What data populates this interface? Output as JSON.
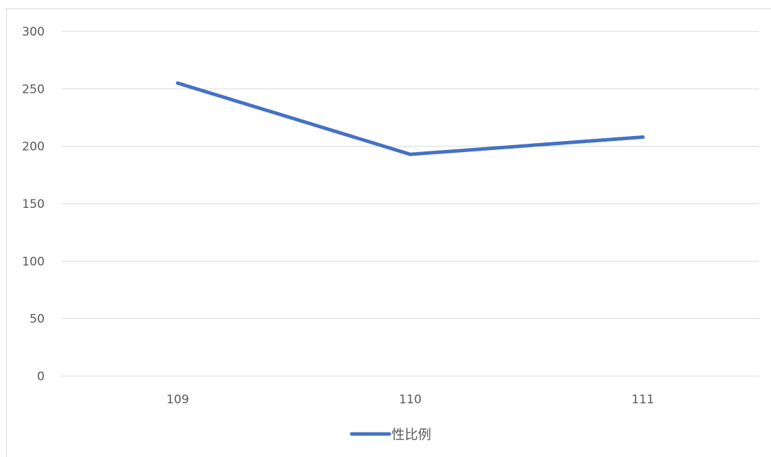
{
  "chart_data": {
    "type": "line",
    "categories": [
      "109",
      "110",
      "111"
    ],
    "series": [
      {
        "name": "性比例",
        "values": [
          255,
          193,
          208
        ],
        "color": "#4472c4"
      }
    ],
    "ylim": [
      0,
      300
    ],
    "yticks": [
      "0",
      "50",
      "100",
      "150",
      "200",
      "250",
      "300"
    ],
    "grid": true,
    "legend": "bottom",
    "title": "",
    "xlabel": "",
    "ylabel": "",
    "colors": {
      "gridline": "#d9d9d9",
      "text": "#595959"
    }
  }
}
